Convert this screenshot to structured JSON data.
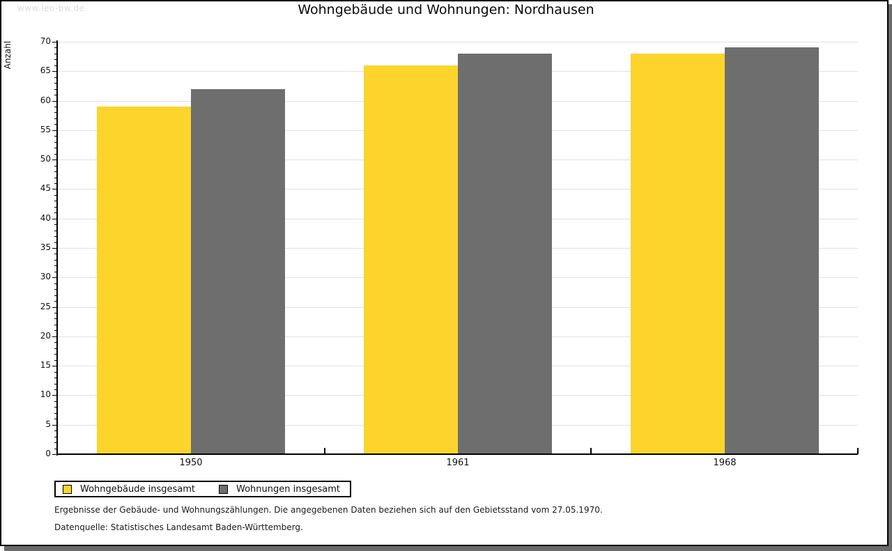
{
  "watermark": "www.leo-bw.de",
  "title": "Wohngebäude und Wohnungen: Nordhausen",
  "chart_data": {
    "type": "bar",
    "title": "Wohngebäude und Wohnungen: Nordhausen",
    "categories": [
      "1950",
      "1961",
      "1968"
    ],
    "series": [
      {
        "name": "Wohngebäude insgesamt",
        "color": "#FCD42C",
        "values": [
          59,
          66,
          68
        ]
      },
      {
        "name": "Wohnungen insgesamt",
        "color": "#6E6E6E",
        "values": [
          62,
          68,
          69
        ]
      }
    ],
    "xlabel": "",
    "ylabel": "Anzahl",
    "ylim": [
      0,
      70
    ],
    "ytick_step": 5,
    "yminor_step": 1,
    "grid": true,
    "gridline_color": "#E1E1E1",
    "legend_position": "bottom-left"
  },
  "footnotes": [
    "Ergebnisse der Gebäude- und Wohnungszählungen. Die angegebenen Daten beziehen sich auf den Gebietsstand vom 27.05.1970.",
    "Datenquelle: Statistisches Landesamt Baden-Württemberg."
  ]
}
